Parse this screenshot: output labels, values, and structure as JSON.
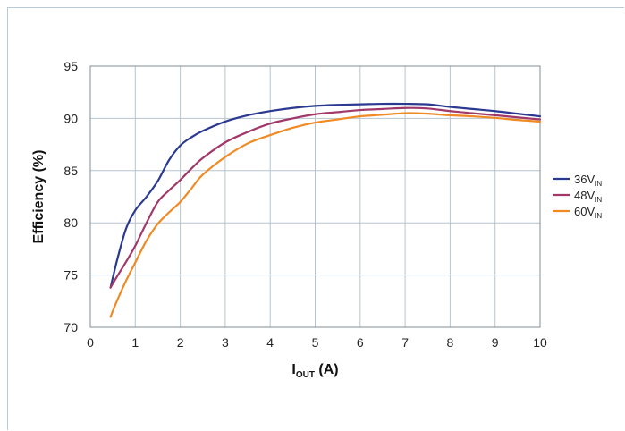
{
  "chart_data": {
    "type": "line",
    "title": "",
    "xlabel": {
      "main": "I",
      "sub": "OUT",
      "suffix": " (A)"
    },
    "ylabel": "Efficiency (%)",
    "xlim": [
      0,
      10
    ],
    "ylim": [
      70,
      95
    ],
    "xticks": [
      "0",
      "1",
      "2",
      "3",
      "4",
      "5",
      "6",
      "7",
      "8",
      "9",
      "10"
    ],
    "yticks": [
      "70",
      "75",
      "80",
      "85",
      "90",
      "95"
    ],
    "grid": true,
    "legend_position": "right",
    "series": [
      {
        "name": {
          "main": "36V",
          "sub": "IN"
        },
        "color": "#2b3990",
        "points": [
          [
            0.45,
            73.8
          ],
          [
            0.6,
            76.5
          ],
          [
            0.8,
            79.5
          ],
          [
            1.0,
            81.2
          ],
          [
            1.25,
            82.5
          ],
          [
            1.5,
            84.0
          ],
          [
            1.75,
            86.0
          ],
          [
            2.0,
            87.4
          ],
          [
            2.25,
            88.2
          ],
          [
            2.5,
            88.8
          ],
          [
            3.0,
            89.7
          ],
          [
            3.5,
            90.3
          ],
          [
            4.0,
            90.7
          ],
          [
            4.5,
            91.0
          ],
          [
            5.0,
            91.2
          ],
          [
            5.5,
            91.3
          ],
          [
            6.0,
            91.35
          ],
          [
            6.5,
            91.4
          ],
          [
            7.0,
            91.4
          ],
          [
            7.5,
            91.35
          ],
          [
            8.0,
            91.1
          ],
          [
            8.5,
            90.9
          ],
          [
            9.0,
            90.7
          ],
          [
            9.5,
            90.45
          ],
          [
            10.0,
            90.2
          ]
        ]
      },
      {
        "name": {
          "main": "48V",
          "sub": "IN"
        },
        "color": "#a0396a",
        "points": [
          [
            0.45,
            73.8
          ],
          [
            0.6,
            74.9
          ],
          [
            0.8,
            76.3
          ],
          [
            1.0,
            77.8
          ],
          [
            1.25,
            80.0
          ],
          [
            1.5,
            82.0
          ],
          [
            1.75,
            83.1
          ],
          [
            2.0,
            84.1
          ],
          [
            2.25,
            85.2
          ],
          [
            2.5,
            86.2
          ],
          [
            3.0,
            87.7
          ],
          [
            3.5,
            88.7
          ],
          [
            4.0,
            89.5
          ],
          [
            4.5,
            90.0
          ],
          [
            5.0,
            90.4
          ],
          [
            5.5,
            90.6
          ],
          [
            6.0,
            90.8
          ],
          [
            6.5,
            90.9
          ],
          [
            7.0,
            91.0
          ],
          [
            7.5,
            90.95
          ],
          [
            8.0,
            90.7
          ],
          [
            8.5,
            90.5
          ],
          [
            9.0,
            90.3
          ],
          [
            9.5,
            90.1
          ],
          [
            10.0,
            89.9
          ]
        ]
      },
      {
        "name": {
          "main": "60V",
          "sub": "IN"
        },
        "color": "#f08a24",
        "points": [
          [
            0.45,
            71.0
          ],
          [
            0.6,
            72.6
          ],
          [
            0.8,
            74.5
          ],
          [
            1.0,
            76.2
          ],
          [
            1.25,
            78.3
          ],
          [
            1.5,
            79.9
          ],
          [
            1.75,
            81.0
          ],
          [
            2.0,
            82.0
          ],
          [
            2.25,
            83.3
          ],
          [
            2.5,
            84.6
          ],
          [
            3.0,
            86.3
          ],
          [
            3.5,
            87.6
          ],
          [
            4.0,
            88.4
          ],
          [
            4.5,
            89.1
          ],
          [
            5.0,
            89.6
          ],
          [
            5.5,
            89.9
          ],
          [
            6.0,
            90.2
          ],
          [
            6.5,
            90.35
          ],
          [
            7.0,
            90.5
          ],
          [
            7.5,
            90.45
          ],
          [
            8.0,
            90.3
          ],
          [
            8.5,
            90.2
          ],
          [
            9.0,
            90.05
          ],
          [
            9.5,
            89.85
          ],
          [
            10.0,
            89.7
          ]
        ]
      }
    ]
  }
}
